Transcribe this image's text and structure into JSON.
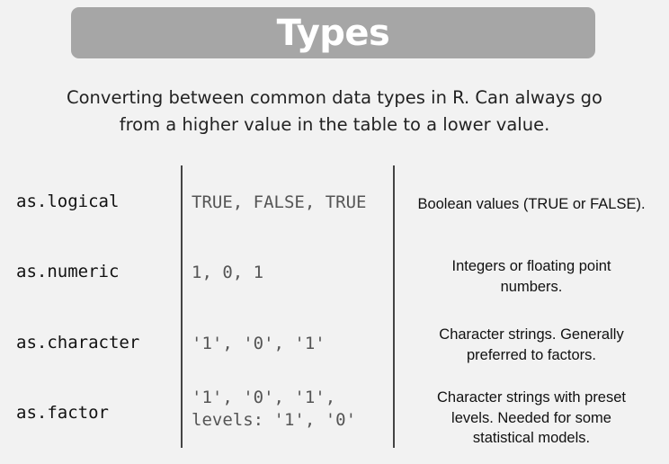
{
  "title": "Types",
  "subtitle": {
    "line1": "Converting between common data types in R. Can always go",
    "line2": "from a higher value in the table to a lower value."
  },
  "rows": [
    {
      "function": "as.logical",
      "example": [
        "TRUE, FALSE, TRUE"
      ],
      "description": [
        "Boolean values (TRUE or FALSE)."
      ]
    },
    {
      "function": "as.numeric",
      "example": [
        "1, 0, 1"
      ],
      "description": [
        "Integers or floating point",
        "numbers."
      ]
    },
    {
      "function": "as.character",
      "example": [
        "'1', '0', '1'"
      ],
      "description": [
        "Character strings. Generally",
        "preferred to factors."
      ]
    },
    {
      "function": "as.factor",
      "example": [
        "'1', '0', '1',",
        "levels: '1', '0'"
      ],
      "description": [
        "Character strings with preset",
        "levels. Needed for some",
        "statistical models."
      ]
    }
  ]
}
